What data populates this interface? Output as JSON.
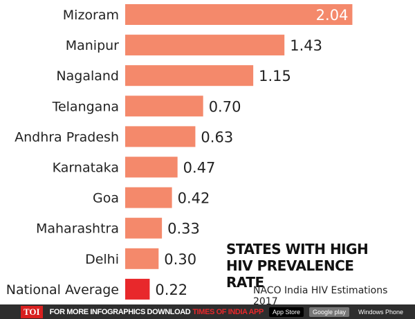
{
  "chart_data": {
    "type": "bar",
    "orientation": "horizontal",
    "title": "STATES WITH HIGH HIV PREVALENCE RATE",
    "source": "NACO India HIV Estimations 2017",
    "categories": [
      "Mizoram",
      "Manipur",
      "Nagaland",
      "Telangana",
      "Andhra Pradesh",
      "Karnataka",
      "Goa",
      "Maharashtra",
      "Delhi",
      "National Average"
    ],
    "values": [
      2.04,
      1.43,
      1.15,
      0.7,
      0.63,
      0.47,
      0.42,
      0.33,
      0.3,
      0.22
    ],
    "value_labels": [
      "2.04",
      "1.43",
      "1.15",
      "0.70",
      "0.63",
      "0.47",
      "0.42",
      "0.33",
      "0.30",
      "0.22"
    ],
    "colors": {
      "bar": "#f4896b",
      "highlight": "#e8282b"
    },
    "highlight_category": "National Average",
    "grid": false
  },
  "footer": {
    "logo": "TOI",
    "promo": "FOR MORE  INFOGRAPHICS DOWNLOAD",
    "app": "TIMES OF INDIA  APP",
    "badges": [
      "App Store",
      "Google play",
      "Windows Phone"
    ]
  }
}
